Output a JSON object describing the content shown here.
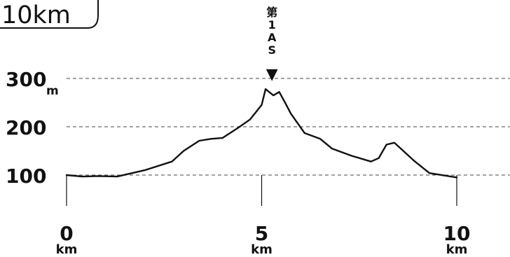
{
  "badge": {
    "text": "10km"
  },
  "chart_data": {
    "type": "line",
    "title": "",
    "xlabel": "",
    "ylabel": "",
    "x_unit": "km",
    "y_unit": "m",
    "xlim": [
      0,
      10
    ],
    "ylim": [
      0,
      300
    ],
    "y_gridlines": [
      100,
      200,
      300
    ],
    "y_ticks": [
      {
        "value": 100,
        "label": "100"
      },
      {
        "value": 200,
        "label": "200"
      },
      {
        "value": 300,
        "label": "300"
      }
    ],
    "x_ticks": [
      {
        "value": 0,
        "label": "0"
      },
      {
        "value": 5,
        "label": "5"
      },
      {
        "value": 10,
        "label": "10"
      }
    ],
    "series": [
      {
        "x": [
          0,
          0.4,
          0.8,
          1.3,
          2.0,
          2.7,
          3.0,
          3.4,
          3.7,
          4.0,
          4.4,
          4.7,
          5.0,
          5.1,
          5.3,
          5.45,
          5.6,
          5.75,
          6.1,
          6.5,
          6.8,
          7.3,
          7.8,
          8.0,
          8.2,
          8.4,
          8.9,
          9.3,
          10.0
        ],
        "y": [
          100,
          97,
          98,
          97,
          110,
          128,
          150,
          171,
          175,
          177,
          198,
          215,
          245,
          278,
          265,
          272,
          250,
          227,
          187,
          175,
          155,
          140,
          128,
          135,
          163,
          167,
          130,
          104,
          95
        ]
      }
    ],
    "annotations": [
      {
        "x": 5.3,
        "text_lines": [
          "第",
          "1",
          "A",
          "S"
        ],
        "marker": "▼"
      }
    ]
  }
}
